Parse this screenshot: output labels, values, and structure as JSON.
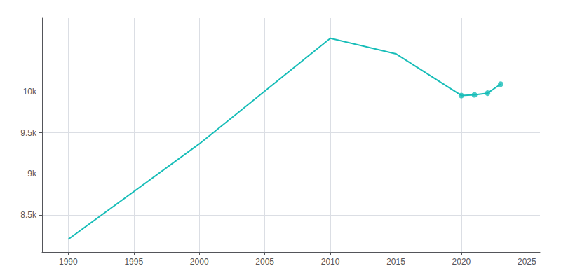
{
  "chart_data": {
    "type": "line",
    "x": [
      1990,
      2000,
      2010,
      2015,
      2020,
      2021,
      2022,
      2023
    ],
    "series": [
      {
        "type": "line",
        "color": "#17BDB8",
        "marker": "none",
        "values": [
          8205,
          9365,
          10647,
          10458,
          9952,
          9960,
          9980,
          10090
        ]
      },
      {
        "type": "scatter",
        "color": "#17BDB8",
        "marker": "circle",
        "values": [
          null,
          null,
          null,
          null,
          9952,
          9960,
          9980,
          10090
        ]
      }
    ],
    "xlim": [
      1988,
      2026
    ],
    "xticks": [
      1990,
      1995,
      2000,
      2005,
      2010,
      2015,
      2020,
      2025
    ],
    "ylim": [
      8050,
      10900
    ],
    "yticks": [
      {
        "value": 8500,
        "label": "8.5k"
      },
      {
        "value": 9000,
        "label": "9k"
      },
      {
        "value": 9500,
        "label": "9.5k"
      },
      {
        "value": 10000,
        "label": "10k"
      }
    ],
    "grid": true
  }
}
